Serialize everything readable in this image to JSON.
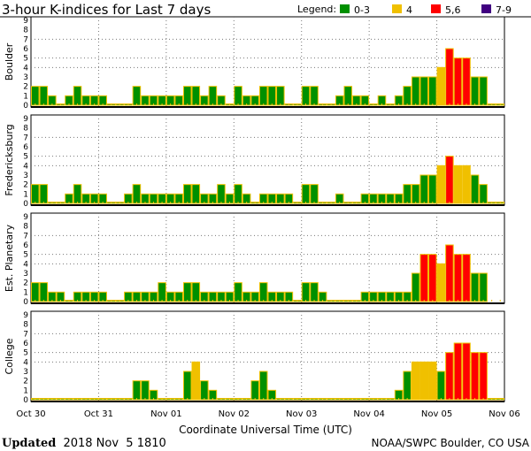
{
  "chart_data": {
    "type": "bar",
    "title": "3-hour K-indices for Last 7 days",
    "legend": {
      "label": "Legend:",
      "entries": [
        {
          "label": "0-3",
          "color": "#009000"
        },
        {
          "label": "4",
          "color": "#f0c000"
        },
        {
          "label": "5,6",
          "color": "#ff0000"
        },
        {
          "label": "7-9",
          "color": "#400080"
        }
      ],
      "placement": "top-right"
    },
    "xlabel": "Coordinate Universal Time (UTC)",
    "x_tick_labels": [
      "Oct 30",
      "Oct 31",
      "Nov 01",
      "Nov 02",
      "Nov 03",
      "Nov 04",
      "Nov 05",
      "Nov 06"
    ],
    "ylim": [
      0,
      9
    ],
    "y_ticks": [
      "0",
      "1",
      "2",
      "3",
      "4",
      "5",
      "6",
      "7",
      "8",
      "9"
    ],
    "grid_levels": [
      4,
      5,
      7
    ],
    "bar_outline_color": "#f0c000",
    "interval_hours": 3,
    "series": [
      {
        "name": "Boulder",
        "values": [
          2,
          2,
          1,
          0,
          1,
          2,
          1,
          1,
          1,
          0,
          0,
          0,
          2,
          1,
          1,
          1,
          1,
          1,
          2,
          2,
          1,
          2,
          1,
          0,
          2,
          1,
          1,
          2,
          2,
          2,
          0,
          0,
          2,
          2,
          0,
          0,
          1,
          2,
          1,
          1,
          0,
          1,
          0,
          1,
          2,
          3,
          3,
          3,
          4,
          6,
          5,
          5,
          3,
          3,
          0,
          0
        ]
      },
      {
        "name": "Fredericksburg",
        "values": [
          2,
          2,
          0,
          0,
          1,
          2,
          1,
          1,
          1,
          0,
          0,
          1,
          2,
          1,
          1,
          1,
          1,
          1,
          2,
          2,
          1,
          1,
          2,
          1,
          2,
          1,
          0,
          1,
          1,
          1,
          1,
          0,
          2,
          2,
          0,
          0,
          1,
          0,
          0,
          1,
          1,
          1,
          1,
          1,
          2,
          2,
          3,
          3,
          4,
          5,
          4,
          4,
          3,
          2,
          0,
          0
        ]
      },
      {
        "name": "Est. Planetary",
        "values": [
          2,
          2,
          1,
          1,
          0,
          1,
          1,
          1,
          1,
          0,
          0,
          1,
          1,
          1,
          1,
          2,
          1,
          1,
          2,
          2,
          1,
          1,
          1,
          1,
          2,
          1,
          1,
          2,
          1,
          1,
          1,
          0,
          2,
          2,
          1,
          0,
          0,
          0,
          0,
          1,
          1,
          1,
          1,
          1,
          1,
          3,
          5,
          5,
          4,
          6,
          5,
          5,
          3,
          3,
          null,
          null
        ]
      },
      {
        "name": "College",
        "values": [
          0,
          0,
          0,
          0,
          0,
          0,
          0,
          0,
          0,
          0,
          0,
          0,
          2,
          2,
          1,
          0,
          0,
          0,
          3,
          4,
          2,
          1,
          0,
          0,
          0,
          0,
          2,
          3,
          1,
          0,
          0,
          0,
          0,
          0,
          0,
          0,
          0,
          0,
          0,
          0,
          0,
          0,
          0,
          1,
          3,
          4,
          4,
          4,
          3,
          5,
          6,
          6,
          5,
          5,
          0,
          0
        ]
      }
    ]
  },
  "footer": {
    "updated_label": "Updated",
    "updated_value": "2018 Nov  5 1810",
    "source": "NOAA/SWPC Boulder, CO USA"
  }
}
